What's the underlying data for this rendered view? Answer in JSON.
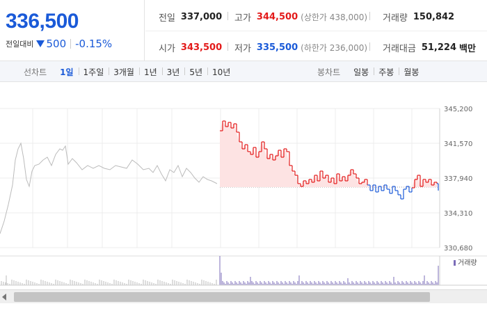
{
  "quote": {
    "price": "336,500",
    "change_label": "전일대비",
    "change_amount": "500",
    "change_percent": "-0.15%"
  },
  "stats": {
    "prev_close": {
      "label": "전일",
      "value": "337,000"
    },
    "high": {
      "label": "고가",
      "value": "344,500",
      "sub": "(상한가 438,000)"
    },
    "volume": {
      "label": "거래량",
      "value": "150,842"
    },
    "open": {
      "label": "시가",
      "value": "343,500"
    },
    "low": {
      "label": "저가",
      "value": "335,500",
      "sub": "(하한가 236,000)"
    },
    "trade_value": {
      "label": "거래대금",
      "value": "51,224",
      "unit": "백만"
    }
  },
  "period_bar": {
    "line_title": "선차트",
    "line_items": [
      "1일",
      "1주일",
      "3개월",
      "1년",
      "3년",
      "5년",
      "10년"
    ],
    "active": "1일",
    "candle_title": "봉차트",
    "candle_items": [
      "일봉",
      "주봉",
      "월봉"
    ]
  },
  "chart_data": {
    "type": "line",
    "y_ticks": [
      "345,200",
      "341,570",
      "337,940",
      "334,310",
      "330,680"
    ],
    "ylim": [
      330680,
      345200
    ],
    "reference_price": 337000,
    "volume_label": "거래량",
    "colors": {
      "up": "#e31a1a",
      "down": "#1a5ad8",
      "prev": "#bbbbbb",
      "fill": "#fde3e3",
      "volume": "#7b6cb8"
    }
  }
}
